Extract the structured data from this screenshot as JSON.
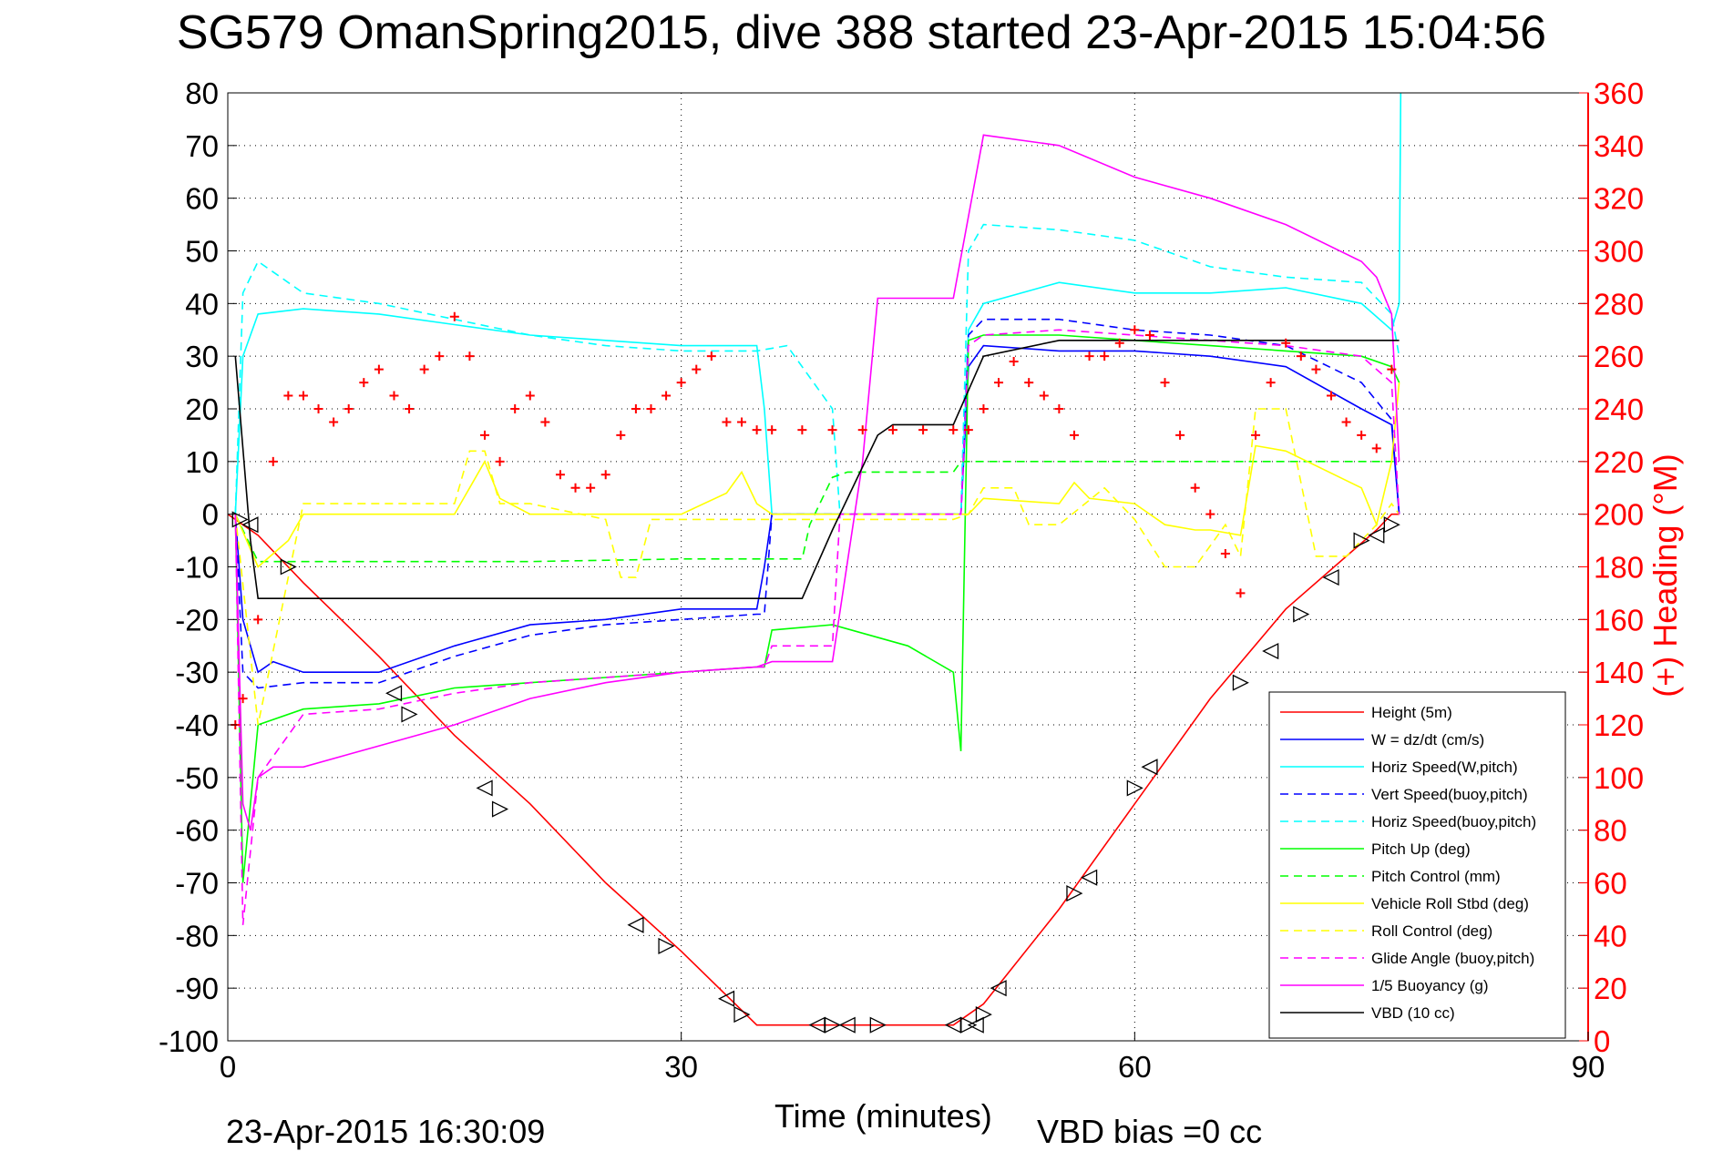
{
  "chart_data": {
    "type": "line",
    "title": "SG579 OmanSpring2015, dive 388 started 23-Apr-2015 15:04:56",
    "xlabel": "Time (minutes)",
    "ylabel": "",
    "ylabel_right": "(+) Heading (°M)",
    "xlim": [
      0,
      90
    ],
    "ylim": [
      -100,
      80
    ],
    "ylim_right": [
      0,
      360
    ],
    "xticks": [
      "0",
      "30",
      "60",
      "90"
    ],
    "yticks": [
      "80",
      "70",
      "60",
      "50",
      "40",
      "30",
      "20",
      "10",
      "0",
      "-10",
      "-20",
      "-30",
      "-40",
      "-50",
      "-60",
      "-70",
      "-80",
      "-90",
      "-100"
    ],
    "yticks_right": [
      "360",
      "340",
      "320",
      "300",
      "280",
      "260",
      "240",
      "220",
      "200",
      "180",
      "160",
      "140",
      "120",
      "100",
      "80",
      "60",
      "40",
      "20",
      "0"
    ],
    "grid": true,
    "legend_position": "bottom-right",
    "footer_time": "23-Apr-2015 16:30:09",
    "footer_note": "VBD bias =0 cc",
    "series": [
      {
        "name": "Height (5m)",
        "color": "#ff0000",
        "style": "solid",
        "x": [
          0,
          2,
          5,
          10,
          15,
          20,
          25,
          30,
          35,
          40,
          45,
          48,
          50,
          55,
          60,
          65,
          70,
          74,
          76,
          77,
          77.5
        ],
        "y": [
          0,
          -4,
          -13,
          -27,
          -42,
          -55,
          -70,
          -83,
          -97,
          -97,
          -97,
          -97,
          -93,
          -75,
          -55,
          -35,
          -18,
          -8,
          -3,
          0,
          0
        ]
      },
      {
        "name": "W = dz/dt (cm/s)",
        "color": "#0000ff",
        "style": "solid",
        "x": [
          0.5,
          1,
          2,
          3,
          5,
          10,
          15,
          20,
          25,
          30,
          35,
          35.5,
          36,
          40,
          45,
          48.5,
          49,
          50,
          55,
          60,
          65,
          70,
          75,
          77,
          77.5
        ],
        "y": [
          0,
          -20,
          -30,
          -28,
          -30,
          -30,
          -25,
          -21,
          -20,
          -18,
          -18,
          -10,
          0,
          0,
          0,
          0,
          28,
          32,
          31,
          31,
          30,
          28,
          20,
          17,
          0
        ]
      },
      {
        "name": "Horiz Speed(W,pitch)",
        "color": "#00ffff",
        "style": "solid",
        "x": [
          0.5,
          1,
          2,
          5,
          10,
          15,
          20,
          25,
          30,
          35,
          35.5,
          36,
          40,
          45,
          48.5,
          49,
          50,
          55,
          60,
          65,
          70,
          75,
          77,
          77.5,
          77.6
        ],
        "y": [
          0,
          30,
          38,
          39,
          38,
          36,
          34,
          33,
          32,
          32,
          20,
          0,
          0,
          0,
          0,
          35,
          40,
          44,
          42,
          42,
          43,
          40,
          35,
          40,
          80
        ]
      },
      {
        "name": "Vert Speed(buoy,pitch)",
        "color": "#0000ff",
        "style": "dashed",
        "x": [
          0.5,
          1,
          2,
          5,
          10,
          15,
          20,
          25,
          30,
          35,
          35.5,
          36,
          40,
          45,
          48.5,
          49,
          50,
          55,
          60,
          65,
          70,
          75,
          77,
          77.5
        ],
        "y": [
          0,
          -30,
          -33,
          -32,
          -32,
          -27,
          -23,
          -21,
          -20,
          -19,
          -19,
          0,
          0,
          0,
          0,
          34,
          37,
          37,
          35,
          34,
          32,
          25,
          18,
          0
        ]
      },
      {
        "name": "Horiz Speed(buoy,pitch)",
        "color": "#00ffff",
        "style": "dashed",
        "x": [
          0.5,
          1,
          2,
          5,
          10,
          15,
          20,
          25,
          30,
          35,
          37,
          40,
          40.5,
          45,
          48.5,
          49,
          50,
          55,
          60,
          65,
          70,
          75,
          77,
          77.5
        ],
        "y": [
          0,
          42,
          48,
          42,
          40,
          37,
          34,
          32,
          31,
          31,
          32,
          20,
          0,
          0,
          0,
          50,
          55,
          54,
          52,
          47,
          45,
          44,
          38,
          30
        ]
      },
      {
        "name": "Pitch Up (deg)",
        "color": "#00ff00",
        "style": "solid",
        "x": [
          0.5,
          1,
          2,
          5,
          10,
          15,
          20,
          25,
          30,
          35,
          35.5,
          36,
          40,
          45,
          48,
          48.5,
          49,
          50,
          55,
          60,
          65,
          70,
          75,
          77,
          77.5
        ],
        "y": [
          0,
          -70,
          -40,
          -37,
          -36,
          -33,
          -32,
          -31,
          -30,
          -29,
          -29,
          -22,
          -21,
          -25,
          -30,
          -45,
          33,
          34,
          34,
          33,
          32,
          31,
          30,
          28,
          25
        ]
      },
      {
        "name": "Pitch Control (mm)",
        "color": "#00ff00",
        "style": "dashed",
        "x": [
          0.5,
          2,
          5,
          10,
          20,
          30,
          35,
          38,
          38.5,
          40,
          41,
          45,
          48,
          48.5,
          50,
          60,
          70,
          77,
          77.5
        ],
        "y": [
          0,
          -9,
          -9,
          -9,
          -9,
          -8.5,
          -8.5,
          -8.5,
          -2,
          7,
          8,
          8,
          8,
          10,
          10,
          10,
          10,
          10,
          10
        ]
      },
      {
        "name": "Vehicle Roll Stbd (deg)",
        "color": "#ffff00",
        "style": "solid",
        "x": [
          0.5,
          2,
          4,
          5,
          10,
          15,
          16,
          17,
          18,
          20,
          25,
          30,
          33,
          34,
          35,
          36,
          40,
          45,
          48,
          49,
          50,
          55,
          56,
          57,
          60,
          62,
          64,
          65,
          67,
          68,
          70,
          75,
          76,
          77,
          77.5
        ],
        "y": [
          0,
          -10,
          -5,
          0,
          0,
          0,
          5,
          10,
          3,
          0,
          0,
          0,
          4,
          8,
          2,
          0,
          0,
          0,
          0,
          0,
          3,
          2,
          6,
          3,
          2,
          -2,
          -3,
          -3,
          -4,
          13,
          12,
          5,
          -2,
          10,
          25
        ]
      },
      {
        "name": "Roll Control (deg)",
        "color": "#ffff00",
        "style": "dashed",
        "x": [
          0.5,
          2,
          5,
          10,
          15,
          16,
          17,
          18,
          20,
          25,
          26,
          27,
          28,
          30,
          35,
          36,
          40,
          45,
          48,
          49,
          50,
          52,
          53,
          55,
          58,
          60,
          62,
          64,
          66,
          67,
          68,
          70,
          72,
          74,
          76,
          77,
          77.5
        ],
        "y": [
          0,
          -40,
          2,
          2,
          2,
          12,
          12,
          2,
          2,
          -1,
          -12,
          -12,
          -1,
          -1,
          -1,
          -1,
          -1,
          -1,
          -1,
          0,
          5,
          5,
          -2,
          -2,
          5,
          -1,
          -10,
          -10,
          -2,
          -8,
          20,
          20,
          -8,
          -8,
          -2,
          2,
          0
        ]
      },
      {
        "name": "Glide Angle (buoy,pitch)",
        "color": "#ff00ff",
        "style": "dashed",
        "x": [
          0.5,
          1,
          2,
          5,
          10,
          15,
          20,
          25,
          30,
          35,
          35.5,
          36,
          40,
          40.5,
          45,
          48.5,
          49,
          50,
          55,
          60,
          65,
          70,
          75,
          77,
          77.5
        ],
        "y": [
          0,
          -78,
          -50,
          -38,
          -37,
          -34,
          -32,
          -31,
          -30,
          -29,
          -29,
          -25,
          -25,
          0,
          0,
          0,
          32,
          34,
          35,
          34,
          33,
          32,
          30,
          25,
          0
        ]
      },
      {
        "name": "1/5 Buoyancy (g)",
        "color": "#ff00ff",
        "style": "solid",
        "x": [
          0.5,
          1,
          1.5,
          2,
          3,
          5,
          10,
          15,
          20,
          25,
          30,
          35,
          36,
          40,
          42,
          43,
          47,
          48,
          50,
          55,
          60,
          65,
          70,
          75,
          76,
          77,
          77.5
        ],
        "y": [
          0,
          -55,
          -60,
          -50,
          -48,
          -48,
          -44,
          -40,
          -35,
          -32,
          -30,
          -29,
          -28,
          -28,
          10,
          41,
          41,
          41,
          72,
          70,
          64,
          60,
          55,
          48,
          45,
          38,
          10
        ]
      },
      {
        "name": "VBD (10 cc)",
        "color": "#000000",
        "style": "solid",
        "x": [
          0.5,
          1.5,
          2,
          10,
          20,
          30,
          35,
          38,
          40,
          43,
          44,
          47,
          48,
          50,
          55,
          60,
          65,
          70,
          75,
          77,
          77.5
        ],
        "y": [
          30,
          -5,
          -16,
          -16,
          -16,
          -16,
          -16,
          -16,
          -3,
          15,
          17,
          17,
          17,
          30,
          33,
          33,
          33,
          33,
          33,
          33,
          33
        ]
      },
      {
        "name": "Heading",
        "color": "#ff0000",
        "style": "plus",
        "axis": "right",
        "x": [
          0.5,
          1,
          2,
          3,
          4,
          5,
          6,
          7,
          8,
          9,
          10,
          11,
          12,
          13,
          14,
          15,
          16,
          17,
          18,
          19,
          20,
          21,
          22,
          23,
          24,
          25,
          26,
          27,
          28,
          29,
          30,
          31,
          32,
          33,
          34,
          35,
          36,
          38,
          40,
          42,
          44,
          46,
          48,
          49,
          50,
          51,
          52,
          53,
          54,
          55,
          56,
          57,
          58,
          59,
          60,
          61,
          62,
          63,
          64,
          65,
          66,
          67,
          68,
          69,
          70,
          71,
          72,
          73,
          74,
          75,
          76,
          77
        ],
        "y": [
          120,
          130,
          160,
          220,
          245,
          245,
          240,
          235,
          240,
          250,
          255,
          245,
          240,
          255,
          260,
          275,
          260,
          230,
          220,
          240,
          245,
          235,
          215,
          210,
          210,
          215,
          230,
          240,
          240,
          245,
          250,
          255,
          260,
          235,
          235,
          232,
          232,
          232,
          232,
          232,
          232,
          232,
          232,
          232,
          240,
          250,
          258,
          250,
          245,
          240,
          230,
          260,
          260,
          265,
          270,
          268,
          250,
          230,
          210,
          200,
          185,
          170,
          230,
          250,
          265,
          260,
          255,
          245,
          235,
          230,
          225,
          255
        ]
      }
    ],
    "markers": {
      "name": "triangles on Height",
      "color": "#000000",
      "x": [
        0.8,
        1.5,
        4,
        11,
        12,
        17,
        18,
        27,
        29,
        33,
        34,
        39,
        40,
        41,
        43,
        48,
        49,
        49.5,
        50,
        51,
        56,
        57,
        60,
        61,
        67,
        69,
        71,
        73,
        75,
        76,
        77
      ],
      "y": [
        -1,
        -2,
        -10,
        -34,
        -38,
        -52,
        -56,
        -78,
        -82,
        -92,
        -95,
        -97,
        -97,
        -97,
        -97,
        -97,
        -97,
        -97,
        -95,
        -90,
        -72,
        -69,
        -52,
        -48,
        -32,
        -26,
        -19,
        -12,
        -5,
        -4,
        -2
      ]
    }
  }
}
